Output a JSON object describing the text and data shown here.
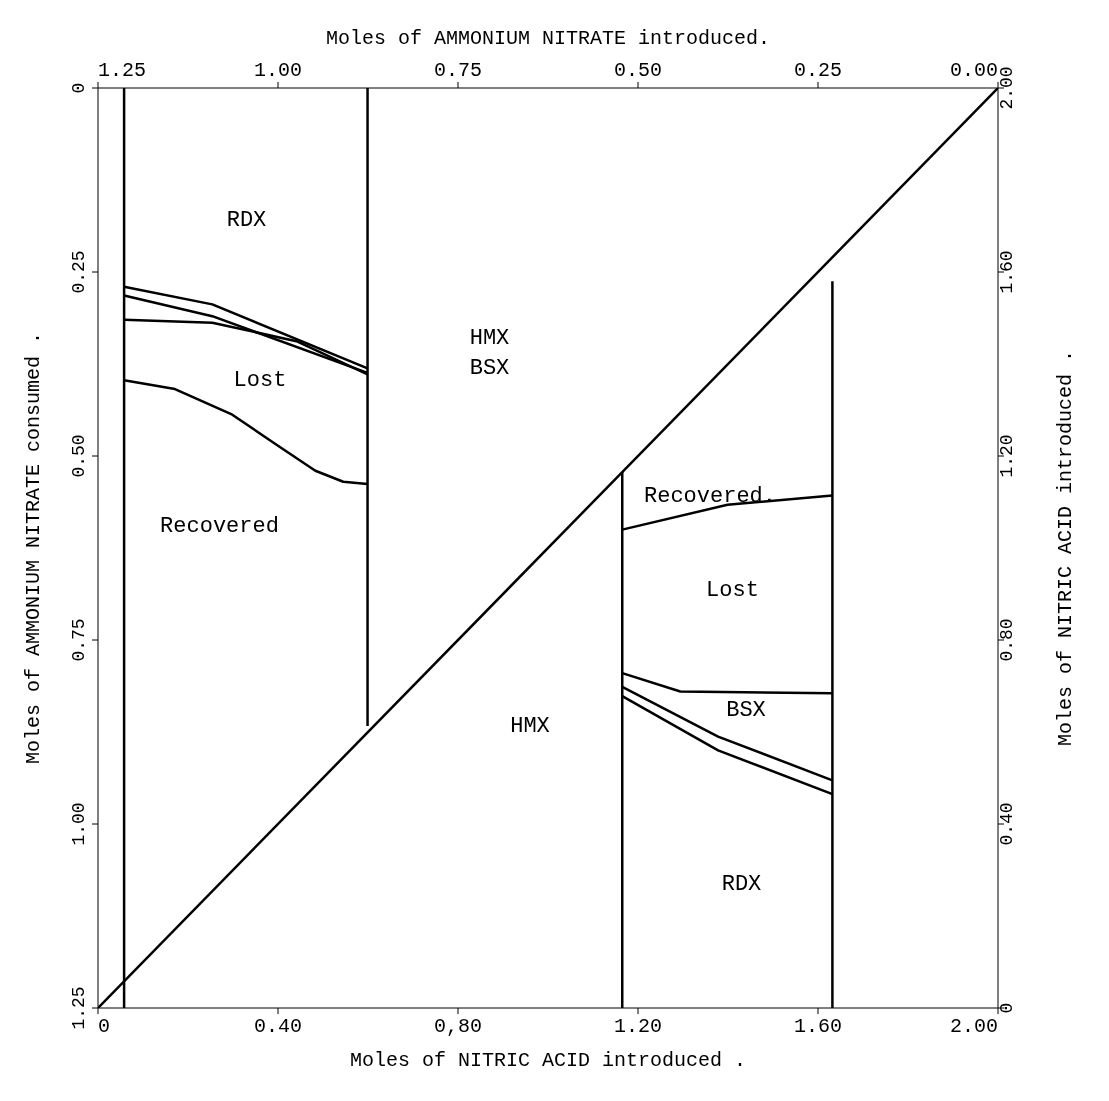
{
  "chart_data": {
    "type": "line",
    "xlabel": "Moles of NITRIC ACID introduced .",
    "x2label": "Moles of AMMONIUM NITRATE introduced.",
    "ylabel": "Moles of AMMONIUM NITRATE consumed .",
    "y2label": "Moles of NITRIC ACID introduced .",
    "xlim": [
      0,
      2
    ],
    "xticks": [
      {
        "value": 0,
        "label": "0"
      },
      {
        "value": 0.4,
        "label": "0.40"
      },
      {
        "value": 0.8,
        "label": "0,80"
      },
      {
        "value": 1.2,
        "label": "1.20"
      },
      {
        "value": 1.6,
        "label": "1.60"
      },
      {
        "value": 2,
        "label": "2.00"
      }
    ],
    "x2lim": [
      1.25,
      0
    ],
    "x2ticks": [
      {
        "value": 1.25,
        "label": "1.25"
      },
      {
        "value": 1,
        "label": "1.00"
      },
      {
        "value": 0.75,
        "label": "0.75"
      },
      {
        "value": 0.5,
        "label": "0.50"
      },
      {
        "value": 0.25,
        "label": "0.25"
      },
      {
        "value": 0,
        "label": "0.00"
      }
    ],
    "ylim": [
      1.25,
      0
    ],
    "yticks": [
      {
        "value": 0,
        "label": "0"
      },
      {
        "value": 0.25,
        "label": "0.25"
      },
      {
        "value": 0.5,
        "label": "0.50"
      },
      {
        "value": 0.75,
        "label": "0.75"
      },
      {
        "value": 1,
        "label": "1.00"
      },
      {
        "value": 1.25,
        "label": "1.25"
      }
    ],
    "y2lim": [
      0,
      2
    ],
    "y2ticks": [
      {
        "value": 0,
        "label": "0"
      },
      {
        "value": 0.4,
        "label": "0.40"
      },
      {
        "value": 0.8,
        "label": "0.80"
      },
      {
        "value": 1.2,
        "label": "1.20"
      },
      {
        "value": 1.6,
        "label": "1.60"
      },
      {
        "value": 2,
        "label": "2.00"
      }
    ],
    "grid": false,
    "legend": false,
    "marker": "none",
    "line_style": "solid",
    "series": [
      {
        "color": "#000000",
        "axis": "y2",
        "x": [
          0,
          2
        ],
        "values": [
          0,
          2
        ]
      },
      {
        "color": "#000000",
        "x": [
          0.058,
          0.058
        ],
        "values": [
          0,
          1.25
        ]
      },
      {
        "color": "#000000",
        "x": [
          0.599,
          0.599
        ],
        "values": [
          0,
          0.867
        ]
      },
      {
        "color": "#000000",
        "axis": "y2",
        "x": [
          1.165,
          1.165
        ],
        "values": [
          0,
          1.165
        ]
      },
      {
        "color": "#000000",
        "axis": "y2",
        "x": [
          1.632,
          1.632
        ],
        "values": [
          0,
          1.58
        ]
      },
      {
        "color": "#000000",
        "x": [
          0.058,
          0.254,
          0.599
        ],
        "values": [
          0.27,
          0.294,
          0.381
        ]
      },
      {
        "color": "#000000",
        "x": [
          0.058,
          0.254,
          0.599
        ],
        "values": [
          0.282,
          0.31,
          0.387
        ]
      },
      {
        "color": "#000000",
        "x": [
          0.058,
          0.254,
          0.441,
          0.599
        ],
        "values": [
          0.315,
          0.319,
          0.344,
          0.389
        ]
      },
      {
        "color": "#000000",
        "x": [
          0.058,
          0.171,
          0.296,
          0.4,
          0.483,
          0.545,
          0.599
        ],
        "values": [
          0.397,
          0.409,
          0.443,
          0.486,
          0.52,
          0.535,
          0.538
        ]
      },
      {
        "color": "#000000",
        "axis": "y2",
        "x": [
          1.165,
          1.399,
          1.632
        ],
        "values": [
          1.04,
          1.094,
          1.114
        ]
      },
      {
        "color": "#000000",
        "axis": "y2",
        "x": [
          1.165,
          1.294,
          1.632
        ],
        "values": [
          0.728,
          0.688,
          0.684
        ]
      },
      {
        "color": "#000000",
        "axis": "y2",
        "x": [
          1.165,
          1.378,
          1.632
        ],
        "values": [
          0.698,
          0.59,
          0.495
        ]
      },
      {
        "color": "#000000",
        "axis": "y2",
        "x": [
          1.165,
          1.378,
          1.632
        ],
        "values": [
          0.678,
          0.56,
          0.465
        ]
      }
    ],
    "annotations": [
      "RDX",
      "Lost",
      "HMX",
      "BSX",
      "Recovered",
      "Recovered.",
      "Lost",
      "HMX",
      "BSX",
      "RDX"
    ]
  }
}
